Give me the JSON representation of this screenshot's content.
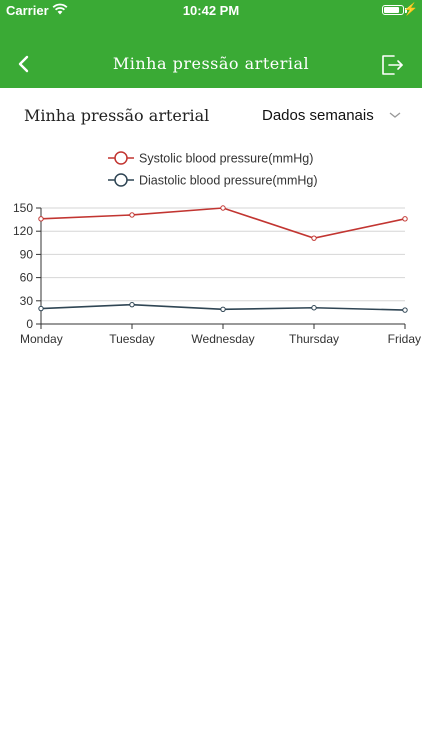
{
  "status_bar": {
    "carrier": "Carrier",
    "time": "10:42 PM",
    "battery_level": 0.9,
    "icons": [
      "wifi-icon",
      "battery-icon",
      "charging-bolt-icon"
    ]
  },
  "nav": {
    "title": "Minha pressão arterial",
    "back_icon": "chevron-left-icon",
    "logout_icon": "logout-icon",
    "accent": "#3aaa35"
  },
  "subheader": {
    "title": "Minha pressão arterial",
    "range_selected": "Dados semanais",
    "dropdown_icon": "chevron-down-icon"
  },
  "chart_data": {
    "type": "line",
    "categories": [
      "Monday",
      "Tuesday",
      "Wednesday",
      "Thursday",
      "Friday"
    ],
    "ylim": [
      0,
      150
    ],
    "yticks": [
      0,
      30,
      60,
      90,
      120,
      150
    ],
    "grid": true,
    "legend_position": "top",
    "series": [
      {
        "name": "Systolic blood pressure(mmHg)",
        "values": [
          136,
          141,
          150,
          111,
          136
        ],
        "color": "#c23531"
      },
      {
        "name": "Diastolic blood pressure(mmHg)",
        "values": [
          20,
          25,
          19,
          21,
          18
        ],
        "color": "#2f4554"
      }
    ]
  }
}
